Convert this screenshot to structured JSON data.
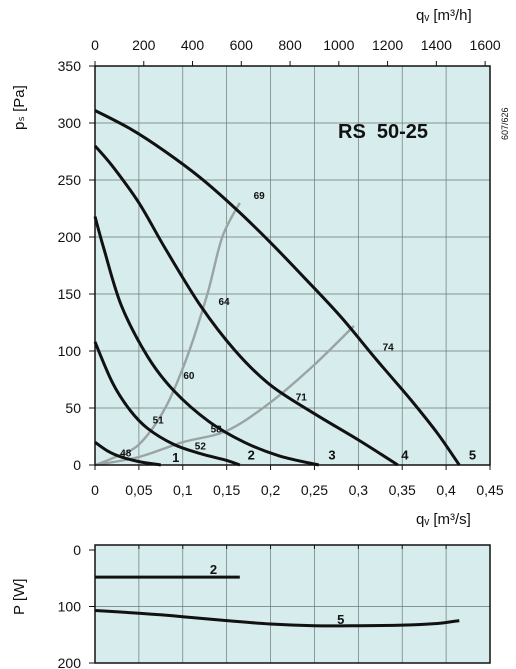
{
  "chart_data": [
    {
      "type": "line",
      "title": "RS  50-25",
      "code": "607/626",
      "xlabel_top": "qᵥ [m³/h]",
      "xlabel_bottom": "qᵥ [m³/s]",
      "ylabel": "pₛ [Pa]",
      "x_top_ticks": [
        "0",
        "200",
        "400",
        "600",
        "800",
        "1000",
        "1200",
        "1400",
        "1600"
      ],
      "x_bottom_ticks": [
        "0",
        "0,05",
        "0,1",
        "0,15",
        "0,2",
        "0,25",
        "0,3",
        "0,35",
        "0,4",
        "0,45"
      ],
      "y_ticks": [
        "0",
        "50",
        "100",
        "150",
        "200",
        "250",
        "300",
        "350"
      ],
      "xlim": [
        0,
        0.45
      ],
      "ylim": [
        0,
        350
      ],
      "grid": true,
      "background": "#d7ecec",
      "series": [
        {
          "name": "1",
          "points": [
            [
              0,
              20
            ],
            [
              0.015,
              12
            ],
            [
              0.03,
              7
            ],
            [
              0.05,
              3
            ],
            [
              0.075,
              0
            ]
          ],
          "label_at": [
            0.092,
            7
          ]
        },
        {
          "name": "2",
          "points": [
            [
              0,
              108
            ],
            [
              0.02,
              72
            ],
            [
              0.04,
              48
            ],
            [
              0.06,
              32
            ],
            [
              0.09,
              18
            ],
            [
              0.12,
              10
            ],
            [
              0.15,
              4
            ],
            [
              0.165,
              0
            ]
          ],
          "label_at": [
            0.178,
            9
          ]
        },
        {
          "name": "3",
          "points": [
            [
              0,
              218
            ],
            [
              0.01,
              190
            ],
            [
              0.03,
              140
            ],
            [
              0.06,
              95
            ],
            [
              0.09,
              65
            ],
            [
              0.13,
              38
            ],
            [
              0.17,
              20
            ],
            [
              0.21,
              8
            ],
            [
              0.255,
              0
            ]
          ],
          "label_at": [
            0.27,
            9
          ]
        },
        {
          "name": "4",
          "points": [
            [
              0,
              280
            ],
            [
              0.02,
              262
            ],
            [
              0.05,
              230
            ],
            [
              0.08,
              190
            ],
            [
              0.12,
              140
            ],
            [
              0.16,
              100
            ],
            [
              0.2,
              70
            ],
            [
              0.25,
              45
            ],
            [
              0.3,
              22
            ],
            [
              0.345,
              0
            ]
          ],
          "label_at": [
            0.353,
            9
          ]
        },
        {
          "name": "5",
          "points": [
            [
              0,
              311
            ],
            [
              0.04,
              295
            ],
            [
              0.08,
              275
            ],
            [
              0.12,
              252
            ],
            [
              0.16,
              225
            ],
            [
              0.2,
              195
            ],
            [
              0.24,
              163
            ],
            [
              0.28,
              130
            ],
            [
              0.32,
              93
            ],
            [
              0.36,
              57
            ],
            [
              0.39,
              28
            ],
            [
              0.415,
              0
            ]
          ],
          "label_at": [
            0.43,
            9
          ]
        }
      ],
      "efficiency_lines": [
        {
          "points": [
            [
              0,
              0
            ],
            [
              0.02,
              6
            ],
            [
              0.05,
              18
            ],
            [
              0.08,
              50
            ],
            [
              0.105,
              95
            ],
            [
              0.128,
              150
            ],
            [
              0.145,
              200
            ],
            [
              0.165,
              230
            ]
          ]
        },
        {
          "points": [
            [
              0,
              0
            ],
            [
              0.05,
              7
            ],
            [
              0.1,
              20
            ],
            [
              0.15,
              30
            ],
            [
              0.2,
              55
            ],
            [
              0.25,
              88
            ],
            [
              0.295,
              122
            ]
          ]
        }
      ],
      "efficiency_labels": [
        {
          "text": "69",
          "at": [
            0.187,
            237
          ]
        },
        {
          "text": "64",
          "at": [
            0.147,
            144
          ]
        },
        {
          "text": "74",
          "at": [
            0.334,
            104
          ]
        },
        {
          "text": "60",
          "at": [
            0.107,
            79
          ]
        },
        {
          "text": "71",
          "at": [
            0.235,
            60
          ]
        },
        {
          "text": "51",
          "at": [
            0.072,
            40
          ]
        },
        {
          "text": "58",
          "at": [
            0.138,
            32
          ]
        },
        {
          "text": "52",
          "at": [
            0.12,
            17
          ]
        },
        {
          "text": "48",
          "at": [
            0.035,
            11
          ]
        }
      ]
    },
    {
      "type": "line",
      "ylabel": "P [W]",
      "y_ticks": [
        "0",
        "100",
        "200"
      ],
      "ylim": [
        0,
        200
      ],
      "y_inverted": true,
      "xlim": [
        0,
        0.45
      ],
      "grid": true,
      "background": "#d7ecec",
      "series": [
        {
          "name": "2",
          "points": [
            [
              0,
              48
            ],
            [
              0.165,
              48
            ]
          ],
          "label_at": [
            0.135,
            34
          ]
        },
        {
          "name": "5",
          "points": [
            [
              0,
              107
            ],
            [
              0.05,
              112
            ],
            [
              0.1,
              118
            ],
            [
              0.15,
              125
            ],
            [
              0.2,
              131
            ],
            [
              0.25,
              134
            ],
            [
              0.3,
              134
            ],
            [
              0.35,
              133
            ],
            [
              0.39,
              130
            ],
            [
              0.415,
              125
            ]
          ],
          "label_at": [
            0.28,
            122
          ]
        }
      ]
    }
  ]
}
